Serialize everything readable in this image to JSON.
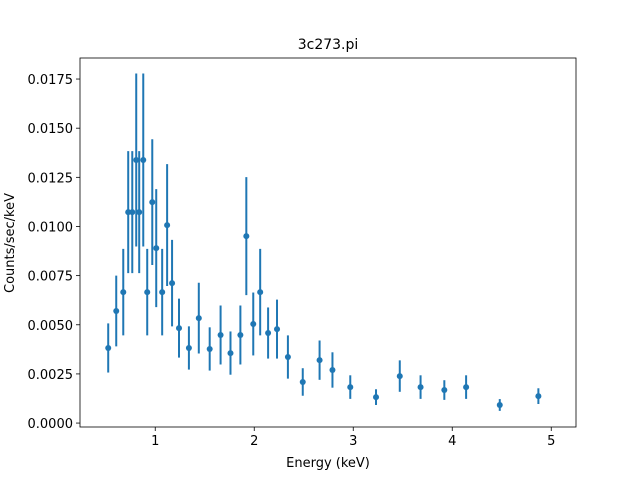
{
  "chart_data": {
    "type": "scatter",
    "title": "3c273.pi",
    "xlabel": "Energy (keV)",
    "ylabel": "Counts/sec/keV",
    "xlim": [
      0.24,
      5.25
    ],
    "ylim": [
      -0.0002,
      0.01857
    ],
    "xticks": [
      1,
      2,
      3,
      4,
      5
    ],
    "xtick_labels": [
      "1",
      "2",
      "3",
      "4",
      "5"
    ],
    "yticks": [
      0,
      0.0025,
      0.005,
      0.0075,
      0.01,
      0.0125,
      0.015,
      0.0175
    ],
    "ytick_labels": [
      "0.0000",
      "0.0025",
      "0.0050",
      "0.0075",
      "0.0100",
      "0.0125",
      "0.0150",
      "0.0175"
    ],
    "grid": false,
    "color": "#1f77b4",
    "x": [
      0.525,
      0.606,
      0.677,
      0.727,
      0.768,
      0.808,
      0.838,
      0.879,
      0.919,
      0.97,
      1.01,
      1.07,
      1.12,
      1.17,
      1.24,
      1.34,
      1.44,
      1.55,
      1.66,
      1.76,
      1.86,
      1.92,
      1.99,
      2.06,
      2.14,
      2.23,
      2.34,
      2.49,
      2.66,
      2.79,
      2.97,
      3.23,
      3.47,
      3.68,
      3.92,
      4.14,
      4.48,
      4.87
    ],
    "y": [
      0.00382,
      0.0057,
      0.00666,
      0.01073,
      0.01073,
      0.01338,
      0.01073,
      0.01338,
      0.00666,
      0.01124,
      0.0089,
      0.00666,
      0.01007,
      0.00712,
      0.00483,
      0.00382,
      0.00534,
      0.00377,
      0.00448,
      0.00356,
      0.00448,
      0.00951,
      0.00504,
      0.00666,
      0.00458,
      0.00478,
      0.00336,
      0.00209,
      0.0032,
      0.0027,
      0.00183,
      0.00132,
      0.00239,
      0.00183,
      0.00168,
      0.00183,
      0.00092,
      0.00137
    ],
    "yerr": [
      0.00125,
      0.0018,
      0.0022,
      0.0031,
      0.0031,
      0.0044,
      0.0031,
      0.0044,
      0.0022,
      0.0032,
      0.003,
      0.0022,
      0.0031,
      0.0022,
      0.0015,
      0.0011,
      0.0018,
      0.0011,
      0.0015,
      0.0011,
      0.0015,
      0.003,
      0.0016,
      0.0022,
      0.0013,
      0.0015,
      0.0011,
      0.0007,
      0.001,
      0.0009,
      0.0006,
      0.0004,
      0.0008,
      0.0006,
      0.0005,
      0.0006,
      0.0003,
      0.0004
    ]
  }
}
